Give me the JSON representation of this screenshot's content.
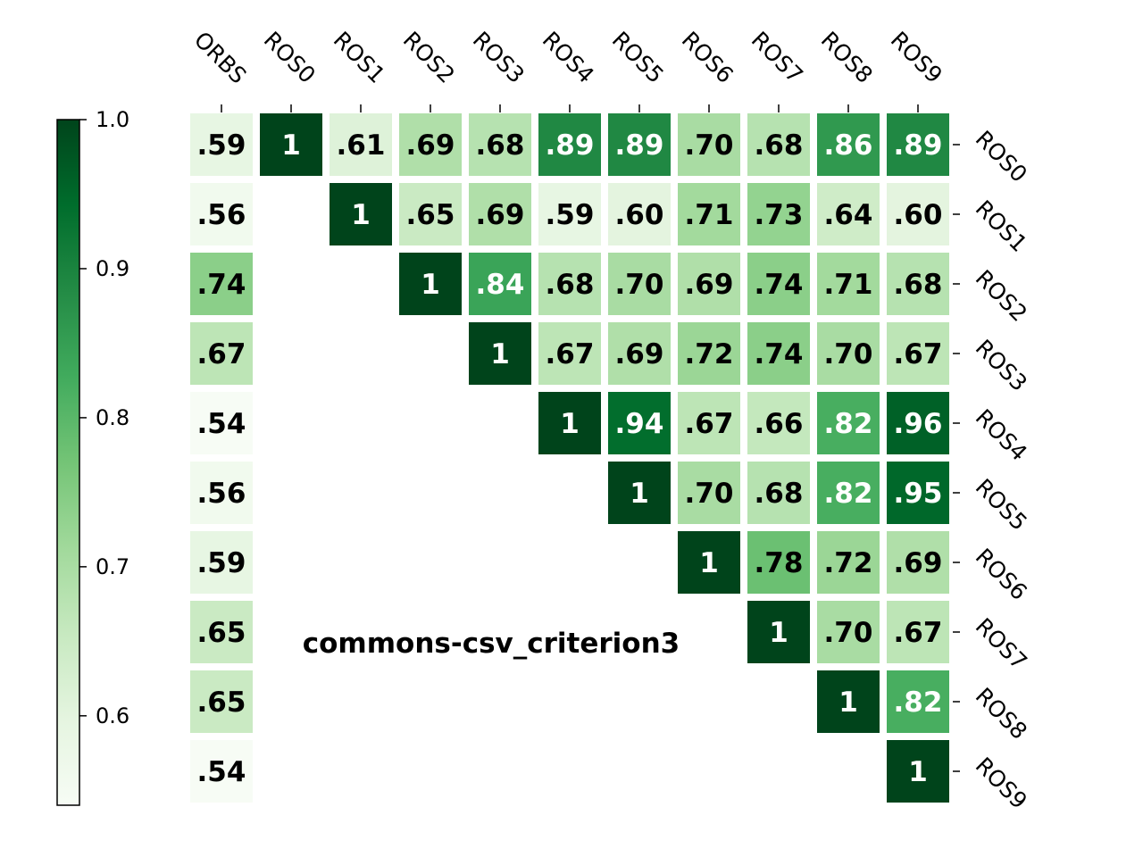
{
  "chart_data": {
    "type": "heatmap",
    "title": "commons-csv_criterion3",
    "columns": [
      "ORBS",
      "ROS0",
      "ROS1",
      "ROS2",
      "ROS3",
      "ROS4",
      "ROS5",
      "ROS6",
      "ROS7",
      "ROS8",
      "ROS9"
    ],
    "rows": [
      "ROS0",
      "ROS1",
      "ROS2",
      "ROS3",
      "ROS4",
      "ROS5",
      "ROS6",
      "ROS7",
      "ROS8",
      "ROS9"
    ],
    "values": [
      [
        0.59,
        1,
        0.61,
        0.69,
        0.68,
        0.89,
        0.89,
        0.7,
        0.68,
        0.86,
        0.89
      ],
      [
        0.56,
        null,
        1,
        0.65,
        0.69,
        0.59,
        0.6,
        0.71,
        0.73,
        0.64,
        0.6
      ],
      [
        0.74,
        null,
        null,
        1,
        0.84,
        0.68,
        0.7,
        0.69,
        0.74,
        0.71,
        0.68
      ],
      [
        0.67,
        null,
        null,
        null,
        1,
        0.67,
        0.69,
        0.72,
        0.74,
        0.7,
        0.67
      ],
      [
        0.54,
        null,
        null,
        null,
        null,
        1,
        0.94,
        0.67,
        0.66,
        0.82,
        0.96
      ],
      [
        0.56,
        null,
        null,
        null,
        null,
        null,
        1,
        0.7,
        0.68,
        0.82,
        0.95
      ],
      [
        0.59,
        null,
        null,
        null,
        null,
        null,
        null,
        1,
        0.78,
        0.72,
        0.69
      ],
      [
        0.65,
        null,
        null,
        null,
        null,
        null,
        null,
        null,
        1,
        0.7,
        0.67
      ],
      [
        0.65,
        null,
        null,
        null,
        null,
        null,
        null,
        null,
        null,
        1,
        0.82
      ],
      [
        0.54,
        null,
        null,
        null,
        null,
        null,
        null,
        null,
        null,
        null,
        1
      ]
    ],
    "cell_labels": [
      [
        ".59",
        "1",
        ".61",
        ".69",
        ".68",
        ".89",
        ".89",
        ".70",
        ".68",
        ".86",
        ".89"
      ],
      [
        ".56",
        "",
        "1",
        ".65",
        ".69",
        ".59",
        ".60",
        ".71",
        ".73",
        ".64",
        ".60"
      ],
      [
        ".74",
        "",
        "",
        "1",
        ".84",
        ".68",
        ".70",
        ".69",
        ".74",
        ".71",
        ".68"
      ],
      [
        ".67",
        "",
        "",
        "",
        "1",
        ".67",
        ".69",
        ".72",
        ".74",
        ".70",
        ".67"
      ],
      [
        ".54",
        "",
        "",
        "",
        "",
        "1",
        ".94",
        ".67",
        ".66",
        ".82",
        ".96"
      ],
      [
        ".56",
        "",
        "",
        "",
        "",
        "",
        "1",
        ".70",
        ".68",
        ".82",
        ".95"
      ],
      [
        ".59",
        "",
        "",
        "",
        "",
        "",
        "",
        "1",
        ".78",
        ".72",
        ".69"
      ],
      [
        ".65",
        "",
        "",
        "",
        "",
        "",
        "",
        "",
        "1",
        ".70",
        ".67"
      ],
      [
        ".65",
        "",
        "",
        "",
        "",
        "",
        "",
        "",
        "",
        "1",
        ".82"
      ],
      [
        ".54",
        "",
        "",
        "",
        "",
        "",
        "",
        "",
        "",
        "",
        "1"
      ]
    ],
    "colorbar": {
      "range": [
        0.54,
        1.0
      ],
      "ticks": [
        0.6,
        0.7,
        0.8,
        0.9,
        1.0
      ],
      "tick_labels": [
        "0.6",
        "0.7",
        "0.8",
        "0.9",
        "1.0"
      ],
      "colormap": "Greens"
    },
    "column_label_position": "top",
    "row_label_position": "right",
    "colorbar_position": "left",
    "grid": false
  }
}
